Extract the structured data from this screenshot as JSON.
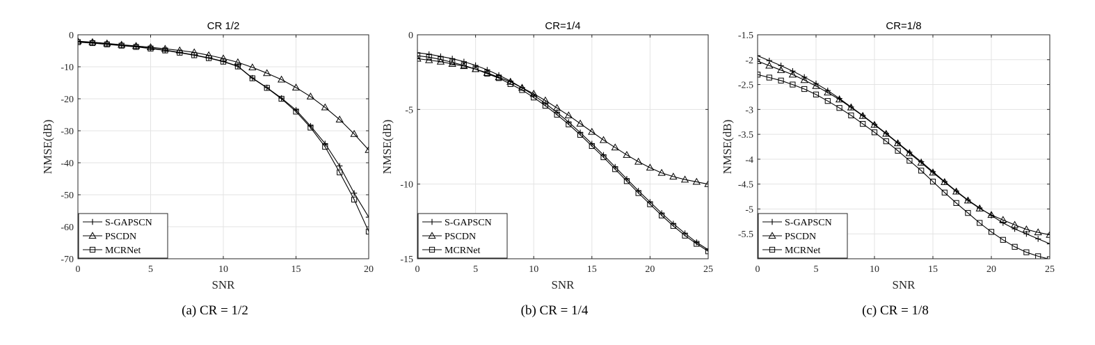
{
  "chart_data": [
    {
      "type": "line",
      "title": "CR 1/2",
      "caption": "(a)  CR = 1/2",
      "xlabel": "SNR",
      "ylabel": "NMSE(dB)",
      "xlim": [
        0,
        20
      ],
      "ylim": [
        -70,
        0
      ],
      "xticks": [
        0,
        5,
        10,
        15,
        20
      ],
      "xtick_labels": [
        "0",
        "5",
        "10",
        "15",
        "20"
      ],
      "yticks": [
        0,
        -10,
        -20,
        -30,
        -40,
        -50,
        -60,
        -70
      ],
      "ytick_labels": [
        "0",
        "-10",
        "-20",
        "-30",
        "-40",
        "-50",
        "-60",
        "-70"
      ],
      "grid": true,
      "legend_position": "bottom-left",
      "x": [
        0,
        1,
        2,
        3,
        4,
        5,
        6,
        7,
        8,
        9,
        10,
        11,
        12,
        13,
        14,
        15,
        16,
        17,
        18,
        19,
        20
      ],
      "series": [
        {
          "name": "S-GAPSCN",
          "marker": "plus",
          "values": [
            -2.2,
            -2.5,
            -2.9,
            -3.3,
            -3.7,
            -4.2,
            -4.8,
            -5.5,
            -6.3,
            -7.2,
            -8.3,
            -9.8,
            -13.5,
            -16.5,
            -19.8,
            -23.5,
            -28.5,
            -34.0,
            -41.0,
            -49.5,
            -57.0
          ]
        },
        {
          "name": "PSCDN",
          "marker": "triangle",
          "values": [
            -2.0,
            -2.3,
            -2.7,
            -3.1,
            -3.5,
            -3.9,
            -4.4,
            -4.9,
            -5.5,
            -6.4,
            -7.4,
            -8.6,
            -10.2,
            -12.0,
            -14.0,
            -16.5,
            -19.3,
            -22.7,
            -26.5,
            -31.0,
            -36.0
          ]
        },
        {
          "name": "MCRNet",
          "marker": "square",
          "values": [
            -2.3,
            -2.6,
            -3.0,
            -3.4,
            -3.8,
            -4.3,
            -4.9,
            -5.6,
            -6.4,
            -7.3,
            -8.4,
            -9.9,
            -13.6,
            -16.6,
            -20.0,
            -24.0,
            -29.0,
            -35.0,
            -43.0,
            -51.5,
            -61.5
          ]
        }
      ]
    },
    {
      "type": "line",
      "title": "CR=1/4",
      "caption": "(b)  CR = 1/4",
      "xlabel": "SNR",
      "ylabel": "NMSE(dB)",
      "xlim": [
        0,
        25
      ],
      "ylim": [
        -15,
        0
      ],
      "xticks": [
        0,
        5,
        10,
        15,
        20,
        25
      ],
      "xtick_labels": [
        "0",
        "5",
        "10",
        "15",
        "20",
        "25"
      ],
      "yticks": [
        0,
        -5,
        -10,
        -15
      ],
      "ytick_labels": [
        "0",
        "-5",
        "-10",
        "-15"
      ],
      "grid": true,
      "legend_position": "bottom-left",
      "x": [
        0,
        1,
        2,
        3,
        4,
        5,
        6,
        7,
        8,
        9,
        10,
        11,
        12,
        13,
        14,
        15,
        16,
        17,
        18,
        19,
        20,
        21,
        22,
        23,
        24,
        25
      ],
      "series": [
        {
          "name": "S-GAPSCN",
          "marker": "plus",
          "values": [
            -1.2,
            -1.3,
            -1.45,
            -1.6,
            -1.8,
            -2.05,
            -2.35,
            -2.7,
            -3.1,
            -3.55,
            -4.05,
            -4.6,
            -5.2,
            -5.85,
            -6.55,
            -7.3,
            -8.05,
            -8.85,
            -9.65,
            -10.45,
            -11.2,
            -11.95,
            -12.65,
            -13.3,
            -13.9,
            -14.4
          ]
        },
        {
          "name": "PSCDN",
          "marker": "triangle",
          "values": [
            -1.6,
            -1.7,
            -1.8,
            -1.95,
            -2.1,
            -2.3,
            -2.55,
            -2.85,
            -3.15,
            -3.55,
            -3.95,
            -4.4,
            -4.9,
            -5.4,
            -5.95,
            -6.5,
            -7.05,
            -7.55,
            -8.05,
            -8.5,
            -8.9,
            -9.25,
            -9.5,
            -9.7,
            -9.85,
            -10.0
          ]
        },
        {
          "name": "MCRNet",
          "marker": "square",
          "values": [
            -1.4,
            -1.5,
            -1.65,
            -1.85,
            -2.05,
            -2.3,
            -2.6,
            -2.9,
            -3.3,
            -3.7,
            -4.2,
            -4.75,
            -5.35,
            -6.0,
            -6.7,
            -7.45,
            -8.2,
            -9.0,
            -9.8,
            -10.6,
            -11.35,
            -12.1,
            -12.8,
            -13.45,
            -14.0,
            -14.5
          ]
        }
      ]
    },
    {
      "type": "line",
      "title": "CR=1/8",
      "caption": "(c)  CR = 1/8",
      "xlabel": "SNR",
      "ylabel": "NMSE(dB)",
      "xlim": [
        0,
        25
      ],
      "ylim": [
        -6,
        -1.5
      ],
      "xticks": [
        0,
        5,
        10,
        15,
        20,
        25
      ],
      "xtick_labels": [
        "0",
        "5",
        "10",
        "15",
        "20",
        "25"
      ],
      "yticks": [
        -1.5,
        -2,
        -2.5,
        -3,
        -3.5,
        -4,
        -4.5,
        -5,
        -5.5
      ],
      "ytick_labels": [
        "-1.5",
        "-2",
        "-2.5",
        "-3",
        "-3.5",
        "-4",
        "-4.5",
        "-5",
        "-5.5"
      ],
      "grid": true,
      "legend_position": "bottom-left",
      "x": [
        0,
        1,
        2,
        3,
        4,
        5,
        6,
        7,
        8,
        9,
        10,
        11,
        12,
        13,
        14,
        15,
        16,
        17,
        18,
        19,
        20,
        21,
        22,
        23,
        24,
        25
      ],
      "series": [
        {
          "name": "S-GAPSCN",
          "marker": "plus",
          "values": [
            -1.92,
            -2.02,
            -2.12,
            -2.23,
            -2.35,
            -2.48,
            -2.62,
            -2.78,
            -2.95,
            -3.12,
            -3.3,
            -3.48,
            -3.67,
            -3.86,
            -4.05,
            -4.25,
            -4.45,
            -4.64,
            -4.82,
            -4.98,
            -5.13,
            -5.28,
            -5.4,
            -5.5,
            -5.6,
            -5.7
          ]
        },
        {
          "name": "PSCDN",
          "marker": "triangle",
          "values": [
            -2.03,
            -2.12,
            -2.21,
            -2.3,
            -2.41,
            -2.53,
            -2.66,
            -2.8,
            -2.96,
            -3.13,
            -3.31,
            -3.49,
            -3.68,
            -3.88,
            -4.07,
            -4.27,
            -4.46,
            -4.65,
            -4.83,
            -4.99,
            -5.12,
            -5.22,
            -5.32,
            -5.41,
            -5.47,
            -5.52
          ]
        },
        {
          "name": "MCRNet",
          "marker": "square",
          "values": [
            -2.3,
            -2.36,
            -2.42,
            -2.5,
            -2.59,
            -2.7,
            -2.83,
            -2.97,
            -3.12,
            -3.29,
            -3.46,
            -3.64,
            -3.83,
            -4.03,
            -4.23,
            -4.45,
            -4.67,
            -4.88,
            -5.08,
            -5.28,
            -5.46,
            -5.62,
            -5.76,
            -5.87,
            -5.95,
            -6.01
          ]
        }
      ]
    }
  ]
}
